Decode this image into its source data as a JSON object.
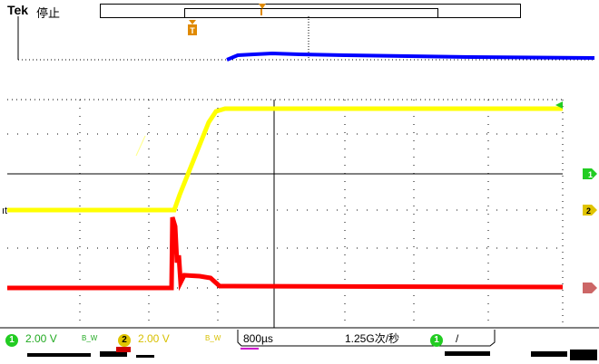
{
  "header": {
    "brand": "Tek",
    "status": "停止"
  },
  "markers": {
    "trigger_label": "T",
    "left_channel_fragment": "ıt",
    "right_channel_1": "1",
    "right_channel_2": "2"
  },
  "footer": {
    "ch1_badge": "1",
    "ch1_scale": "2.00 V",
    "ch1_coupling": "B_W",
    "ch2_badge": "2",
    "ch2_scale": "2.00 V",
    "ch2_coupling": "B_W",
    "timebase": "800µs",
    "sample_rate": "1.25G次/秒",
    "trigger_badge": "1",
    "trigger_slope": "/"
  },
  "colors": {
    "ch1": "#0000ff",
    "ch2": "#ffff00",
    "ch3": "#ff0000",
    "trigger": "#e08a00",
    "grid": "#000000"
  }
}
